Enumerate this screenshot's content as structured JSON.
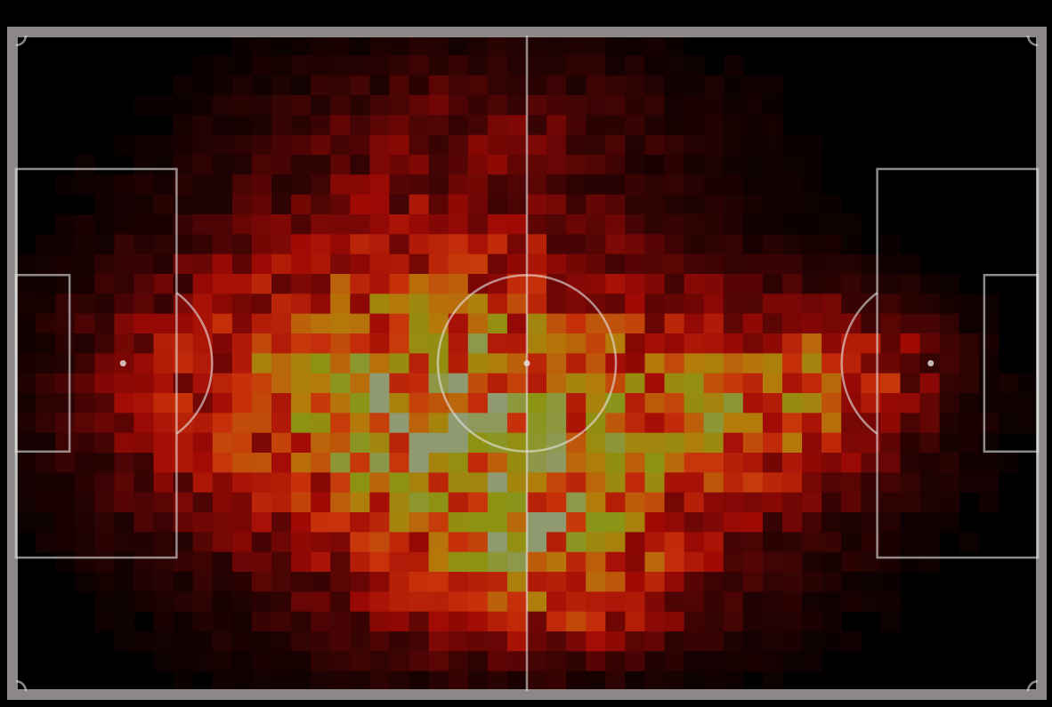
{
  "chart_data": {
    "type": "heatmap",
    "title": "",
    "xlabel": "",
    "ylabel": "",
    "legend": "none",
    "grid": false,
    "pitch": {
      "length_m": 105,
      "width_m": 68,
      "line_color": "#e6e6e6",
      "border_color": "#8c8888",
      "background": "#000000",
      "markings": [
        "halfway-line",
        "centre-circle",
        "centre-spot",
        "penalty-boxes",
        "goal-areas",
        "penalty-spots",
        "penalty-arcs",
        "corner-arcs"
      ]
    },
    "grid_size": {
      "cols": 52,
      "rows": 33
    },
    "colormap": [
      "#000000",
      "#4a0404",
      "#a00a05",
      "#c8320a",
      "#b47a0a",
      "#8a9414",
      "#909a70"
    ],
    "value_range": [
      0,
      1
    ],
    "hot_spots": [
      {
        "x": 50,
        "y": 41,
        "sx": 21,
        "sy": 10,
        "w": 0.55
      },
      {
        "x": 42,
        "y": 26,
        "sx": 16,
        "sy": 12,
        "w": 0.28
      },
      {
        "x": 52,
        "y": 52,
        "sx": 10,
        "sy": 6,
        "w": 0.32
      },
      {
        "x": 77,
        "y": 38,
        "sx": 9,
        "sy": 6,
        "w": 0.34
      },
      {
        "x": 87,
        "y": 34,
        "sx": 6,
        "sy": 4,
        "w": 0.22
      },
      {
        "x": 59,
        "y": 57,
        "sx": 7,
        "sy": 4,
        "w": 0.18
      },
      {
        "x": 36,
        "y": 38,
        "sx": 10,
        "sy": 8,
        "w": 0.18
      },
      {
        "x": 16,
        "y": 36,
        "sx": 8,
        "sy": 9,
        "w": 0.14
      },
      {
        "x": 51,
        "y": 8,
        "sx": 16,
        "sy": 5,
        "w": 0.1
      },
      {
        "x": 48,
        "y": 60,
        "sx": 18,
        "sy": 6,
        "w": 0.12
      }
    ]
  }
}
